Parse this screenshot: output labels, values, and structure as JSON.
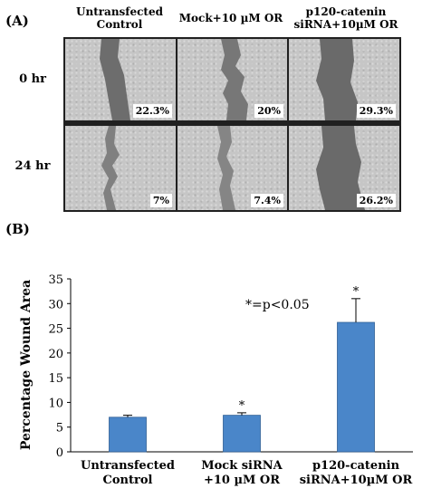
{
  "panel_a": {
    "label": "(A)",
    "columns": [
      "Untransfected\nControl",
      "Mock+10 µM OR",
      "p120-catenin\nsiRNA+10µM OR"
    ],
    "rows": [
      {
        "label": "0 hr",
        "values": [
          "22.3%",
          "20%",
          "29.3%"
        ]
      },
      {
        "label": "24 hr",
        "values": [
          "7%",
          "7.4%",
          "26.2%"
        ]
      }
    ]
  },
  "panel_b": {
    "label": "(B)"
  },
  "chart_data": {
    "type": "bar",
    "categories": [
      "Untransfected\nControl",
      "Mock siRNA\n+10 µM OR",
      "p120-catenin\nsiRNA+10µM OR"
    ],
    "values": [
      7.0,
      7.4,
      26.2
    ],
    "errors": [
      0.4,
      0.5,
      4.8
    ],
    "significance": [
      "",
      "*",
      "*"
    ],
    "annotation": "*=p<0.05",
    "xlabel": "",
    "ylabel": "Percentage Wound Area",
    "ylim": [
      0,
      35
    ],
    "yticks": [
      0,
      5,
      10,
      15,
      20,
      25,
      30,
      35
    ],
    "grid": false,
    "bar_color": "#4a86c9"
  }
}
